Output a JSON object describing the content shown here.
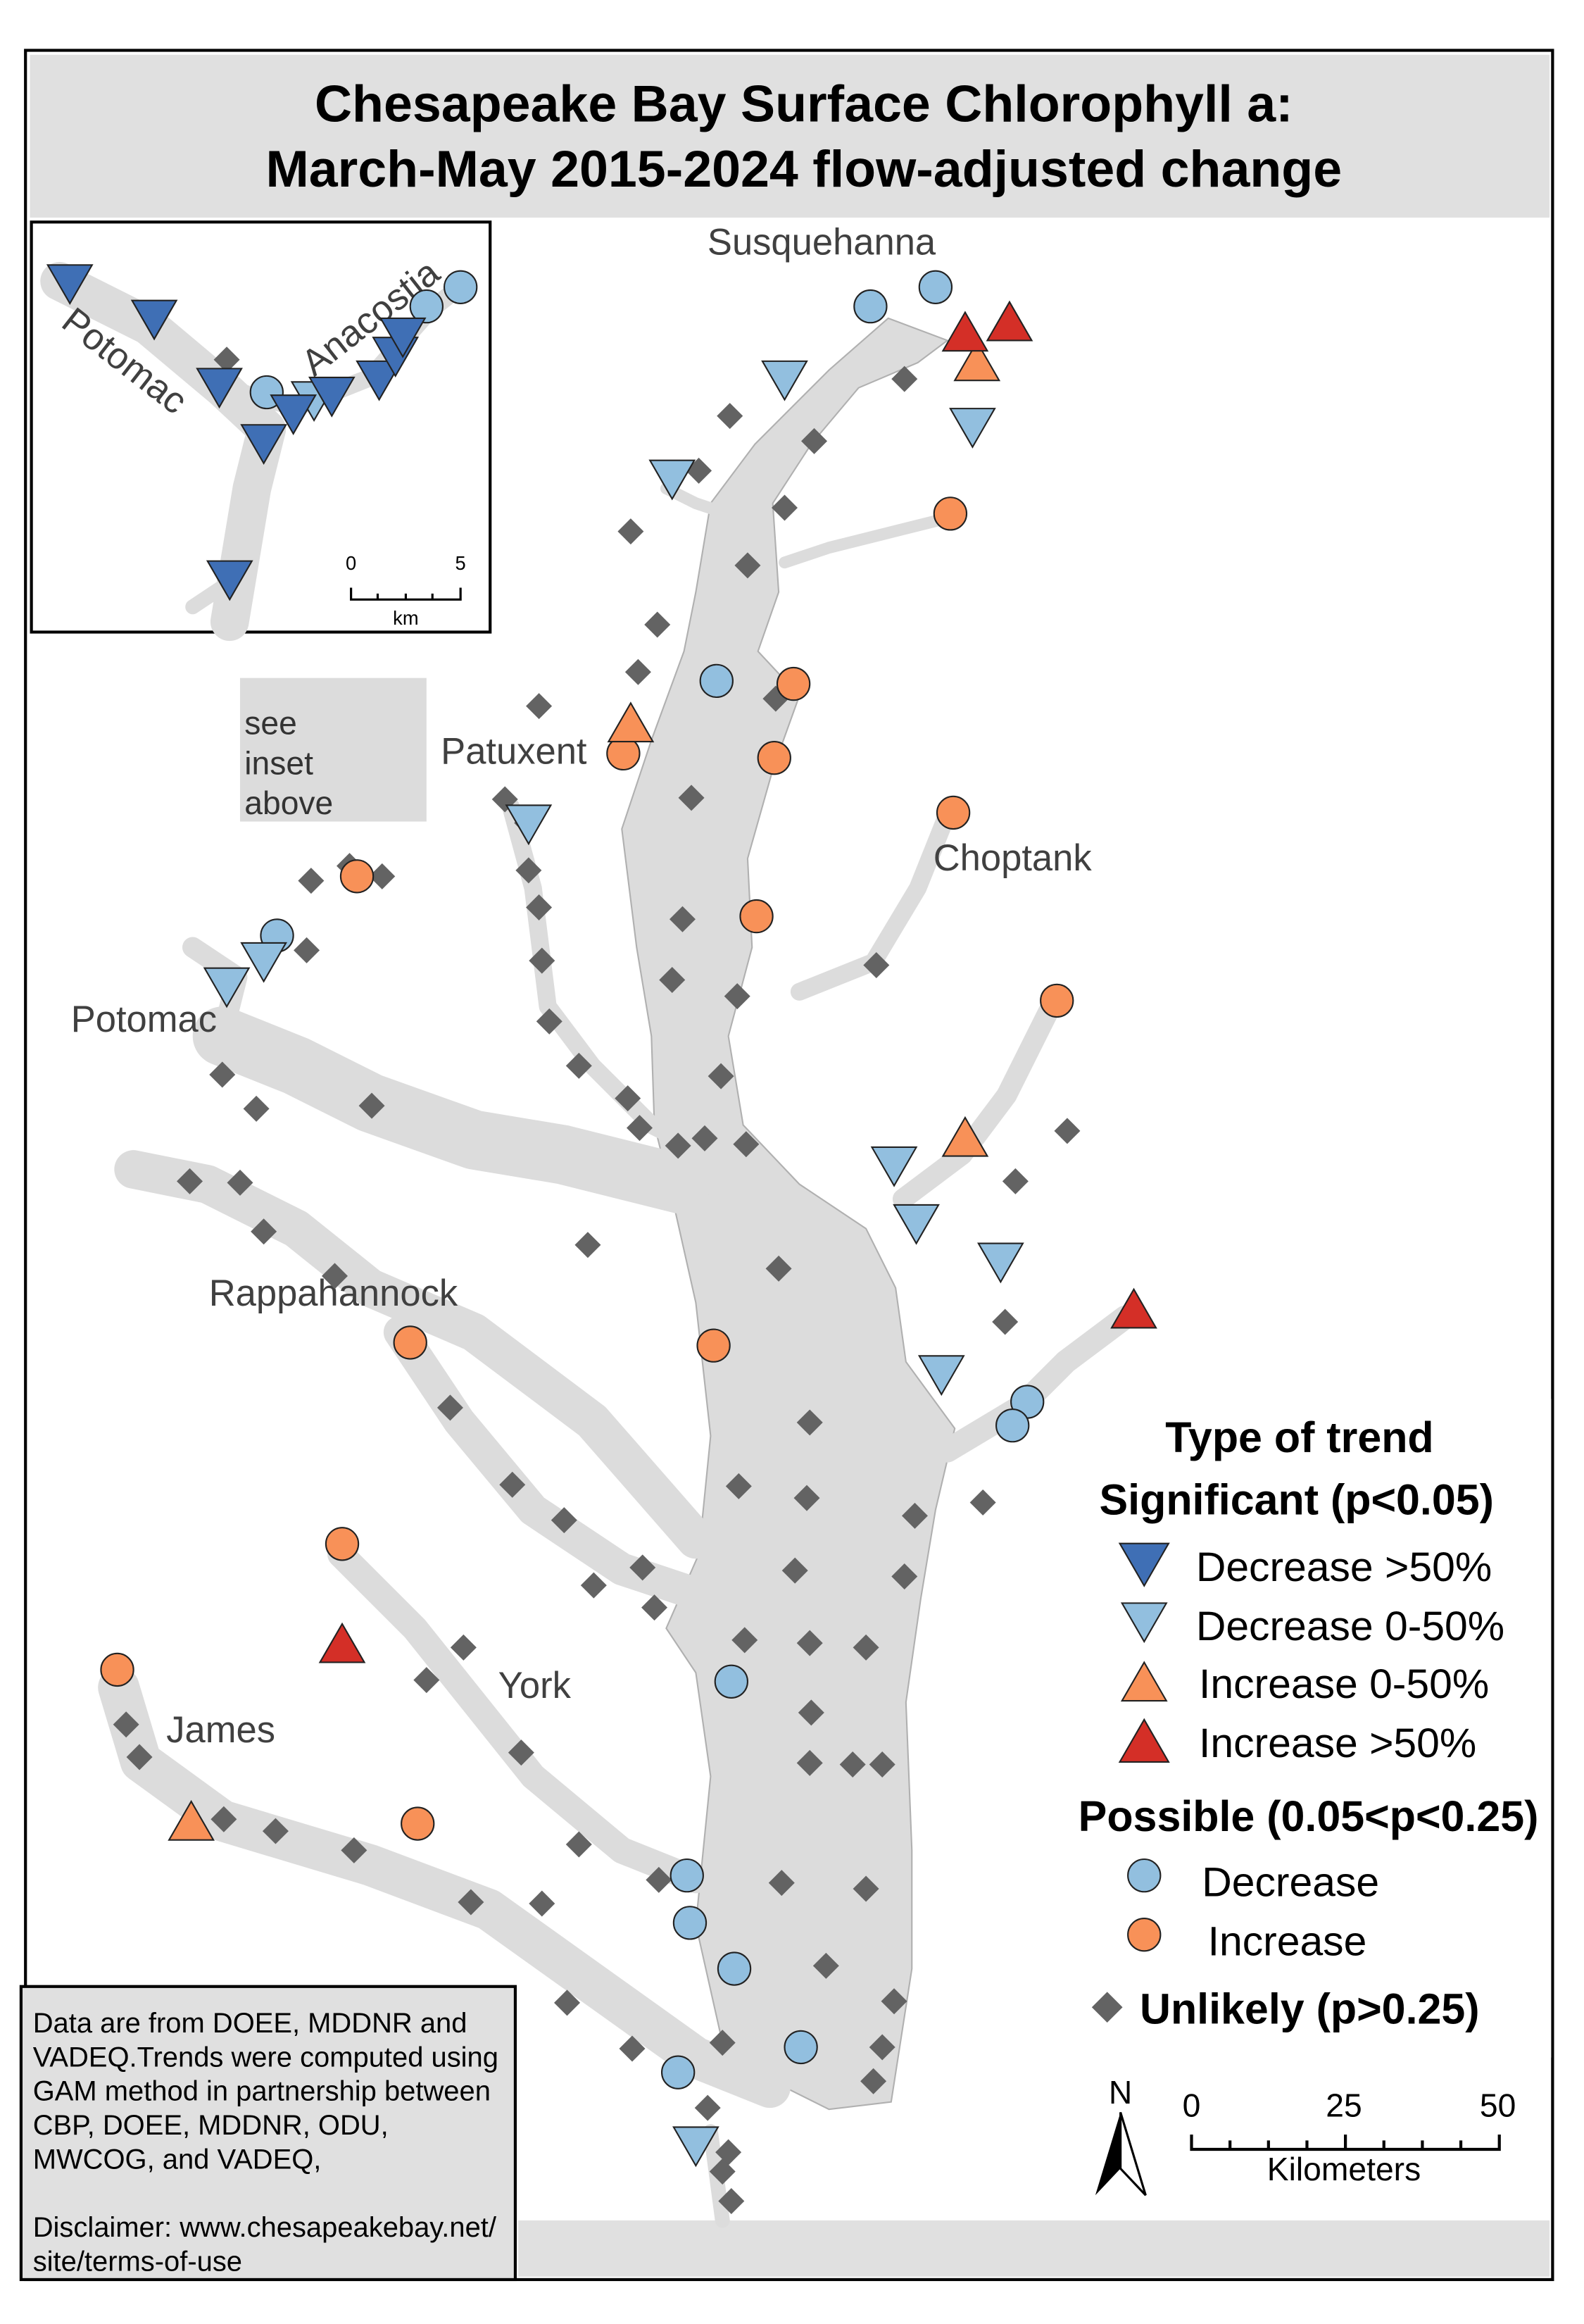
{
  "title": {
    "line1": "Chesapeake Bay Surface Chlorophyll a:",
    "line2": "March-May 2015-2024 flow-adjusted change"
  },
  "river_labels": {
    "susquehanna": "Susquehanna",
    "patuxent": "Patuxent",
    "choptank": "Choptank",
    "potomac": "Potomac",
    "rappahannock": "Rappahannock",
    "york": "York",
    "james": "James"
  },
  "inset": {
    "potomac": "Potomac",
    "anacostia": "Anacostia",
    "scale_ticks": [
      "0",
      "5"
    ],
    "scale_unit": "km",
    "see_inset": [
      "see",
      "inset",
      "above"
    ]
  },
  "legend": {
    "title": "Type of trend",
    "significant_heading": "Significant (p<0.05)",
    "sig_items": [
      {
        "label": "Decrease >50%",
        "type": "dd",
        "color": "#3f6fb5"
      },
      {
        "label": "Decrease 0-50%",
        "type": "ld",
        "color": "#92bfdf"
      },
      {
        "label": "Increase 0-50%",
        "type": "ou",
        "color": "#f89158"
      },
      {
        "label": "Increase >50%",
        "type": "ru",
        "color": "#d42f27"
      }
    ],
    "possible_heading": "Possible (0.05<p<0.25)",
    "pos_items": [
      {
        "label": "Decrease",
        "type": "lb",
        "color": "#92bfdf"
      },
      {
        "label": "Increase",
        "type": "oc",
        "color": "#f89158"
      }
    ],
    "unlikely_label": "Unlikely (p>0.25)",
    "unlikely_color": "#636363"
  },
  "scale_bar": {
    "ticks": [
      "0",
      "25",
      "50"
    ],
    "unit": "Kilometers",
    "north": "N"
  },
  "disclaimer": {
    "lines": [
      "Data are from DOEE, MDDNR and",
      "VADEQ.Trends were computed using",
      "GAM method in partnership between",
      "CBP, DOEE, MDDNR, ODU,",
      "MWCOG, and VADEQ,",
      "",
      "Disclaimer: www.chesapeakebay.net/",
      "site/terms-of-use"
    ]
  },
  "colors": {
    "water": "#dcdcdc",
    "frame_gray": "#e0e0e0",
    "decrease_strong": "#3f6fb5",
    "decrease": "#92bfdf",
    "increase": "#f89158",
    "increase_strong": "#d42f27",
    "unlikely": "#636363"
  }
}
